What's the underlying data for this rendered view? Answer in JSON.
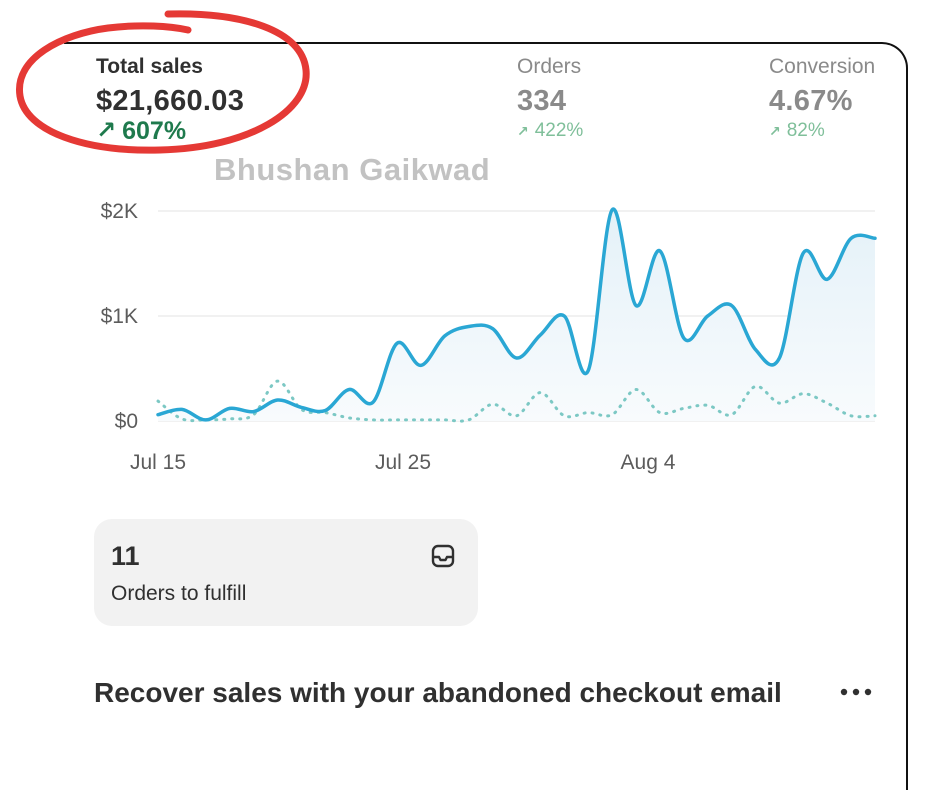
{
  "metrics": [
    {
      "label": "Total sales",
      "value": "$21,660.03",
      "change": "607%",
      "trend_icon": "arrow-up-right-icon"
    },
    {
      "label": "Orders",
      "value": "334",
      "change": "422%",
      "trend_icon": "arrow-up-right-icon"
    },
    {
      "label": "Conversion",
      "value": "4.67%",
      "change": "82%",
      "trend_icon": "arrow-up-right-icon"
    }
  ],
  "watermark": "Bhushan Gaikwad",
  "chart_data": {
    "type": "line",
    "x_tick_labels": [
      "Jul 15",
      "Jul 25",
      "Aug 4"
    ],
    "y_tick_labels": [
      "$2K",
      "$1K",
      "$0"
    ],
    "ylim": [
      0,
      2000
    ],
    "x": [
      "Jul 15",
      "Jul 16",
      "Jul 17",
      "Jul 18",
      "Jul 19",
      "Jul 20",
      "Jul 21",
      "Jul 22",
      "Jul 23",
      "Jul 24",
      "Jul 25",
      "Jul 26",
      "Jul 27",
      "Jul 28",
      "Jul 29",
      "Jul 30",
      "Jul 31",
      "Aug 1",
      "Aug 2",
      "Aug 3",
      "Aug 4",
      "Aug 5",
      "Aug 6",
      "Aug 7",
      "Aug 8",
      "Aug 9",
      "Aug 10",
      "Aug 11",
      "Aug 12",
      "Aug 13",
      "Aug 14"
    ],
    "series": [
      {
        "style": "solid",
        "color": "#2aa7d4",
        "values": [
          60,
          110,
          10,
          120,
          90,
          200,
          130,
          100,
          300,
          180,
          740,
          530,
          810,
          900,
          880,
          600,
          820,
          1000,
          480,
          2010,
          1100,
          1620,
          790,
          1000,
          1100,
          680,
          600,
          1600,
          1350,
          1740,
          1740
        ]
      },
      {
        "style": "dotted",
        "color": "#7cc8c4",
        "values": [
          190,
          20,
          10,
          20,
          60,
          380,
          110,
          80,
          30,
          10,
          10,
          10,
          10,
          10,
          160,
          50,
          270,
          50,
          80,
          60,
          300,
          80,
          120,
          150,
          60,
          330,
          170,
          260,
          170,
          50,
          50
        ]
      }
    ],
    "grid": true
  },
  "fulfill": {
    "count": "11",
    "label": "Orders to fulfill",
    "icon": "inbox-icon"
  },
  "section": {
    "title": "Recover sales with your abandoned checkout email",
    "menu_icon": "more-horizontal-icon"
  },
  "colors": {
    "positive": "#1f7a4d",
    "positive_muted": "#7fbf9a",
    "line": "#2aa7d4",
    "annotation": "#e53935"
  }
}
